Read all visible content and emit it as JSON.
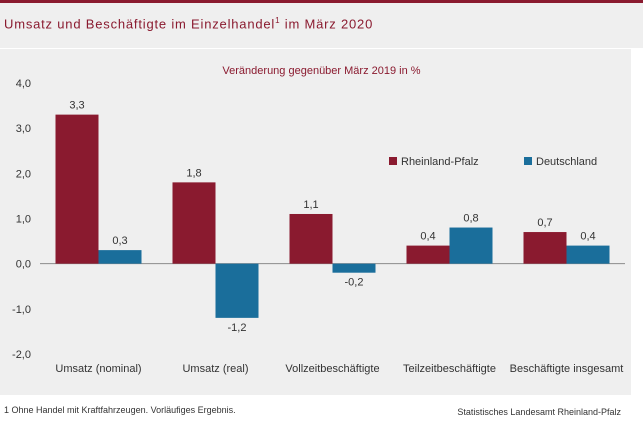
{
  "header": {
    "title_main": "Umsatz und Beschäftigte im Einzelhandel",
    "title_sup": "1",
    "title_end": " im März 2020"
  },
  "chart_data": {
    "type": "bar",
    "title": "Veränderung gegenüber März 2019 in %",
    "categories": [
      "Umsatz (nominal)",
      "Umsatz (real)",
      "Vollzeitbeschäftigte",
      "Teilzeitbeschäftigte",
      "Beschäftigte insgesamt"
    ],
    "series": [
      {
        "name": "Rheinland-Pfalz",
        "color": "#8a1a2f",
        "values": [
          3.3,
          1.8,
          1.1,
          0.4,
          0.7
        ],
        "labels": [
          "3,3",
          "1,8",
          "1,1",
          "0,4",
          "0,7"
        ]
      },
      {
        "name": "Deutschland",
        "color": "#1a6e9b",
        "values": [
          0.3,
          -1.2,
          -0.2,
          0.8,
          0.4
        ],
        "labels": [
          "0,3",
          "-1,2",
          "-0,2",
          "0,8",
          "0,4"
        ]
      }
    ],
    "ylim": [
      -2.0,
      4.0
    ],
    "yticks": [
      4.0,
      3.0,
      2.0,
      1.0,
      0.0,
      -1.0,
      -2.0
    ],
    "ytick_labels": [
      "4,0",
      "3,0",
      "2,0",
      "1,0",
      "0,0",
      "-1,0",
      "-2,0"
    ],
    "xlabel": "",
    "ylabel": "",
    "grid": false,
    "legend_position": "right"
  },
  "footer": {
    "footnote": "1 Ohne Handel mit Kraftfahrzeugen. Vorläufiges Ergebnis.",
    "source": "Statistisches Landesamt Rheinland-Pfalz"
  }
}
